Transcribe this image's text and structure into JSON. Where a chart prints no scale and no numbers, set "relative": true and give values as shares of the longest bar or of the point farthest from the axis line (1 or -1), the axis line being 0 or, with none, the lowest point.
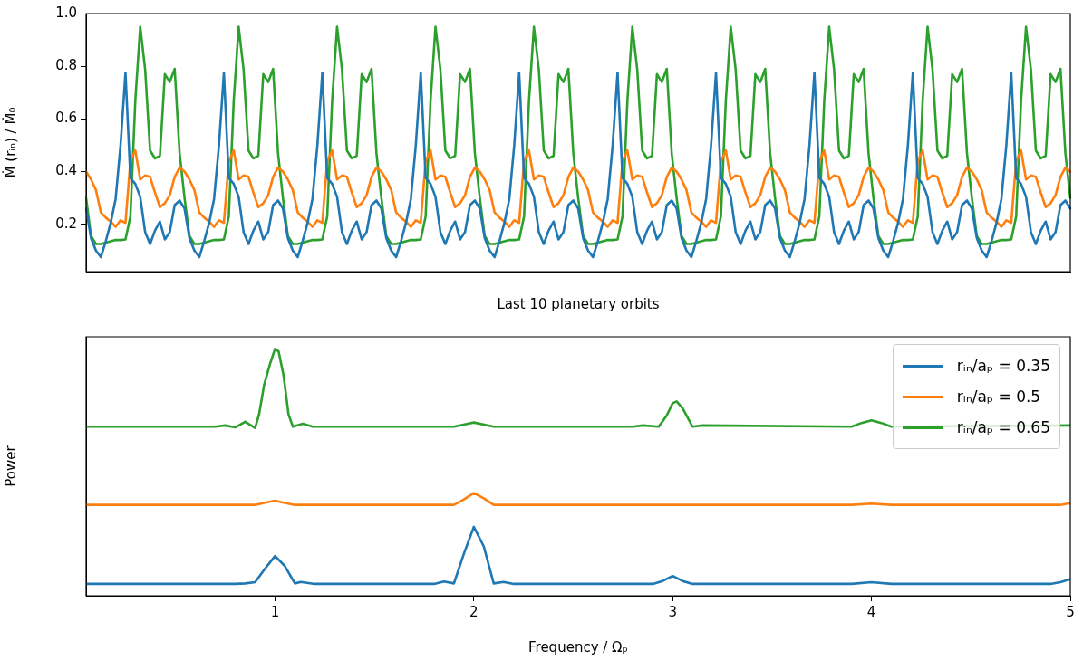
{
  "chart_data": [
    {
      "type": "line",
      "ylabel": "Ṁ (rᵢₙ) / Ṁ₀",
      "xlabel": "Last 10 planetary orbits",
      "tick_labels": "y",
      "ylim": [
        0.02,
        1
      ],
      "yticks": [
        0.2,
        0.4,
        0.6,
        0.8,
        {
          "value": 1,
          "label": "1.0"
        }
      ],
      "categories": [
        null,
        null,
        null,
        null,
        null,
        null,
        null,
        null,
        null,
        null,
        null,
        null,
        null,
        null,
        null,
        null,
        null,
        null,
        null,
        null,
        null,
        null,
        null,
        null,
        null,
        null,
        null,
        null,
        null,
        null,
        null,
        null,
        null,
        null,
        null,
        null,
        null,
        null,
        null,
        null,
        null,
        null,
        null,
        null,
        null,
        null,
        null,
        null,
        null,
        null,
        null,
        null,
        null,
        null,
        null,
        null,
        null,
        null,
        null,
        null,
        null,
        null,
        null,
        null,
        null,
        null,
        null,
        null,
        null,
        null,
        null,
        null,
        null,
        null,
        null,
        null,
        null,
        null,
        null,
        null,
        null,
        null,
        null,
        null,
        null,
        null,
        null,
        null,
        null,
        null,
        null,
        null,
        null,
        null,
        null,
        null,
        null,
        null,
        null,
        null,
        null,
        null,
        null,
        null,
        null,
        null,
        null,
        null,
        null,
        null,
        null,
        null,
        null,
        null,
        null,
        null,
        null,
        null,
        null,
        null,
        null,
        null,
        null,
        null,
        null,
        null,
        null,
        null,
        null,
        null,
        null,
        null,
        null,
        null,
        null,
        null,
        null,
        null,
        null,
        null,
        null,
        null,
        null,
        null,
        null,
        null,
        null,
        null,
        null,
        null,
        null,
        null,
        null,
        null,
        null,
        null,
        null,
        null,
        null,
        null,
        null,
        null,
        null,
        null,
        null,
        null,
        null,
        null,
        null,
        null,
        null,
        null,
        null,
        null,
        null,
        null,
        null,
        null,
        null,
        null,
        null,
        null,
        null,
        null,
        null,
        null,
        null,
        null,
        null,
        null,
        null,
        null,
        null,
        null,
        null,
        null,
        null,
        null,
        null,
        null,
        null
      ],
      "series": [
        {
          "color": "#1f77b4",
          "values": [
            0.26,
            0.147,
            0.1,
            0.075,
            0.136,
            0.205,
            0.296,
            0.5,
            0.775,
            0.376,
            0.353,
            0.304,
            0.17,
            0.125,
            0.176,
            0.21,
            0.142,
            0.17,
            0.273,
            0.29,
            0.26,
            0.147,
            0.1,
            0.075,
            0.136,
            0.205,
            0.296,
            0.5,
            0.775,
            0.376,
            0.353,
            0.304,
            0.17,
            0.125,
            0.176,
            0.21,
            0.142,
            0.17,
            0.273,
            0.29,
            0.26,
            0.147,
            0.1,
            0.075,
            0.136,
            0.205,
            0.296,
            0.5,
            0.775,
            0.376,
            0.353,
            0.304,
            0.17,
            0.125,
            0.176,
            0.21,
            0.142,
            0.17,
            0.273,
            0.29,
            0.26,
            0.147,
            0.1,
            0.075,
            0.136,
            0.205,
            0.296,
            0.5,
            0.775,
            0.376,
            0.353,
            0.304,
            0.17,
            0.125,
            0.176,
            0.21,
            0.142,
            0.17,
            0.273,
            0.29,
            0.26,
            0.147,
            0.1,
            0.075,
            0.136,
            0.205,
            0.296,
            0.5,
            0.775,
            0.376,
            0.353,
            0.304,
            0.17,
            0.125,
            0.176,
            0.21,
            0.142,
            0.17,
            0.273,
            0.29,
            0.26,
            0.147,
            0.1,
            0.075,
            0.136,
            0.205,
            0.296,
            0.5,
            0.775,
            0.376,
            0.353,
            0.304,
            0.17,
            0.125,
            0.176,
            0.21,
            0.142,
            0.17,
            0.273,
            0.29,
            0.26,
            0.147,
            0.1,
            0.075,
            0.136,
            0.205,
            0.296,
            0.5,
            0.775,
            0.376,
            0.353,
            0.304,
            0.17,
            0.125,
            0.176,
            0.21,
            0.142,
            0.17,
            0.273,
            0.29,
            0.26,
            0.147,
            0.1,
            0.075,
            0.136,
            0.205,
            0.296,
            0.5,
            0.775,
            0.376,
            0.353,
            0.304,
            0.17,
            0.125,
            0.176,
            0.21,
            0.142,
            0.17,
            0.273,
            0.29,
            0.26,
            0.147,
            0.1,
            0.075,
            0.136,
            0.205,
            0.296,
            0.5,
            0.775,
            0.376,
            0.353,
            0.304,
            0.17,
            0.125,
            0.176,
            0.21,
            0.142,
            0.17,
            0.273,
            0.29,
            0.26,
            0.147,
            0.1,
            0.075,
            0.136,
            0.205,
            0.296,
            0.5,
            0.775,
            0.376,
            0.353,
            0.304,
            0.17,
            0.125,
            0.176,
            0.21,
            0.142,
            0.17,
            0.273,
            0.29,
            0.26
          ]
        },
        {
          "color": "#ff7f0e",
          "values": [
            0.4,
            0.37,
            0.33,
            0.245,
            0.225,
            0.21,
            0.19,
            0.215,
            0.205,
            0.44,
            0.48,
            0.37,
            0.385,
            0.38,
            0.32,
            0.265,
            0.28,
            0.31,
            0.38,
            0.415,
            0.4,
            0.37,
            0.33,
            0.245,
            0.225,
            0.21,
            0.19,
            0.215,
            0.205,
            0.44,
            0.48,
            0.37,
            0.385,
            0.38,
            0.32,
            0.265,
            0.28,
            0.31,
            0.38,
            0.415,
            0.4,
            0.37,
            0.33,
            0.245,
            0.225,
            0.21,
            0.19,
            0.215,
            0.205,
            0.44,
            0.48,
            0.37,
            0.385,
            0.38,
            0.32,
            0.265,
            0.28,
            0.31,
            0.38,
            0.415,
            0.4,
            0.37,
            0.33,
            0.245,
            0.225,
            0.21,
            0.19,
            0.215,
            0.205,
            0.44,
            0.48,
            0.37,
            0.385,
            0.38,
            0.32,
            0.265,
            0.28,
            0.31,
            0.38,
            0.415,
            0.4,
            0.37,
            0.33,
            0.245,
            0.225,
            0.21,
            0.19,
            0.215,
            0.205,
            0.44,
            0.48,
            0.37,
            0.385,
            0.38,
            0.32,
            0.265,
            0.28,
            0.31,
            0.38,
            0.415,
            0.4,
            0.37,
            0.33,
            0.245,
            0.225,
            0.21,
            0.19,
            0.215,
            0.205,
            0.44,
            0.48,
            0.37,
            0.385,
            0.38,
            0.32,
            0.265,
            0.28,
            0.31,
            0.38,
            0.415,
            0.4,
            0.37,
            0.33,
            0.245,
            0.225,
            0.21,
            0.19,
            0.215,
            0.205,
            0.44,
            0.48,
            0.37,
            0.385,
            0.38,
            0.32,
            0.265,
            0.28,
            0.31,
            0.38,
            0.415,
            0.4,
            0.37,
            0.33,
            0.245,
            0.225,
            0.21,
            0.19,
            0.215,
            0.205,
            0.44,
            0.48,
            0.37,
            0.385,
            0.38,
            0.32,
            0.265,
            0.28,
            0.31,
            0.38,
            0.415,
            0.4,
            0.37,
            0.33,
            0.245,
            0.225,
            0.21,
            0.19,
            0.215,
            0.205,
            0.44,
            0.48,
            0.37,
            0.385,
            0.38,
            0.32,
            0.265,
            0.28,
            0.31,
            0.38,
            0.415,
            0.4,
            0.37,
            0.33,
            0.245,
            0.225,
            0.21,
            0.19,
            0.215,
            0.205,
            0.44,
            0.48,
            0.37,
            0.385,
            0.38,
            0.32,
            0.265,
            0.28,
            0.31,
            0.38,
            0.415,
            0.4
          ]
        },
        {
          "color": "#2ca02c",
          "values": [
            0.3,
            0.155,
            0.125,
            0.125,
            0.13,
            0.135,
            0.14,
            0.14,
            0.142,
            0.23,
            0.67,
            0.95,
            0.787,
            0.48,
            0.45,
            0.46,
            0.77,
            0.74,
            0.79,
            0.47,
            0.3,
            0.155,
            0.125,
            0.125,
            0.13,
            0.135,
            0.14,
            0.14,
            0.142,
            0.23,
            0.67,
            0.95,
            0.787,
            0.48,
            0.45,
            0.46,
            0.77,
            0.74,
            0.79,
            0.47,
            0.3,
            0.155,
            0.125,
            0.125,
            0.13,
            0.135,
            0.14,
            0.14,
            0.142,
            0.23,
            0.67,
            0.95,
            0.787,
            0.48,
            0.45,
            0.46,
            0.77,
            0.74,
            0.79,
            0.47,
            0.3,
            0.155,
            0.125,
            0.125,
            0.13,
            0.135,
            0.14,
            0.14,
            0.142,
            0.23,
            0.67,
            0.95,
            0.787,
            0.48,
            0.45,
            0.46,
            0.77,
            0.74,
            0.79,
            0.47,
            0.3,
            0.155,
            0.125,
            0.125,
            0.13,
            0.135,
            0.14,
            0.14,
            0.142,
            0.23,
            0.67,
            0.95,
            0.787,
            0.48,
            0.45,
            0.46,
            0.77,
            0.74,
            0.79,
            0.47,
            0.3,
            0.155,
            0.125,
            0.125,
            0.13,
            0.135,
            0.14,
            0.14,
            0.142,
            0.23,
            0.67,
            0.95,
            0.787,
            0.48,
            0.45,
            0.46,
            0.77,
            0.74,
            0.79,
            0.47,
            0.3,
            0.155,
            0.125,
            0.125,
            0.13,
            0.135,
            0.14,
            0.14,
            0.142,
            0.23,
            0.67,
            0.95,
            0.787,
            0.48,
            0.45,
            0.46,
            0.77,
            0.74,
            0.79,
            0.47,
            0.3,
            0.155,
            0.125,
            0.125,
            0.13,
            0.135,
            0.14,
            0.14,
            0.142,
            0.23,
            0.67,
            0.95,
            0.787,
            0.48,
            0.45,
            0.46,
            0.77,
            0.74,
            0.79,
            0.47,
            0.3,
            0.155,
            0.125,
            0.125,
            0.13,
            0.135,
            0.14,
            0.14,
            0.142,
            0.23,
            0.67,
            0.95,
            0.787,
            0.48,
            0.45,
            0.46,
            0.77,
            0.74,
            0.79,
            0.47,
            0.3,
            0.155,
            0.125,
            0.125,
            0.13,
            0.135,
            0.14,
            0.14,
            0.142,
            0.23,
            0.67,
            0.95,
            0.787,
            0.48,
            0.45,
            0.46,
            0.77,
            0.74,
            0.79,
            0.47,
            0.3
          ]
        }
      ]
    },
    {
      "type": "line",
      "relative": true,
      "ylabel": "Power",
      "xlabel": "Frequency / Ωₚ",
      "tick_labels": "x",
      "legend": "top right",
      "xlim": [
        0.05,
        5
      ],
      "xticks": [
        1,
        2,
        3,
        4,
        5
      ],
      "series": [
        {
          "name": "rᵢₙ/aₚ = 0.35",
          "color": "#1f77b4",
          "x": [
            0.05,
            0.8,
            0.85,
            0.9,
            0.95,
            1,
            1.05,
            1.1,
            1.13,
            1.2,
            1.8,
            1.85,
            1.9,
            1.95,
            2,
            2.05,
            2.1,
            2.15,
            2.2,
            2.9,
            2.95,
            3,
            3.05,
            3.1,
            3.9,
            4,
            4.1,
            4.9,
            4.95,
            5
          ],
          "values": [
            0.048,
            0.048,
            0.05,
            0.055,
            0.11,
            0.161,
            0.12,
            0.05,
            0.056,
            0.048,
            0.048,
            0.058,
            0.05,
            0.17,
            0.279,
            0.2,
            0.05,
            0.056,
            0.048,
            0.048,
            0.06,
            0.08,
            0.06,
            0.048,
            0.048,
            0.055,
            0.048,
            0.048,
            0.055,
            0.067
          ]
        },
        {
          "name": "rᵢₙ/aₚ = 0.5",
          "color": "#ff7f0e",
          "x": [
            0.05,
            0.9,
            0.95,
            1,
            1.05,
            1.1,
            1.9,
            1.95,
            2,
            2.05,
            2.1,
            3.9,
            4,
            4.1,
            4.95,
            5
          ],
          "values": [
            0.368,
            0.368,
            0.377,
            0.385,
            0.376,
            0.368,
            0.368,
            0.39,
            0.416,
            0.395,
            0.368,
            0.368,
            0.373,
            0.368,
            0.368,
            0.375
          ]
        },
        {
          "name": "rᵢₙ/aₚ = 0.65",
          "color": "#2ca02c",
          "x": [
            0.05,
            0.7,
            0.75,
            0.8,
            0.85,
            0.9,
            0.92,
            0.945,
            0.974,
            1,
            1.018,
            1.043,
            1.068,
            1.09,
            1.14,
            1.19,
            1.9,
            2,
            2.1,
            2.8,
            2.85,
            2.93,
            2.97,
            3,
            3.02,
            3.05,
            3.1,
            3.15,
            3.9,
            3.95,
            4,
            4.05,
            4.1,
            5
          ],
          "values": [
            0.685,
            0.685,
            0.69,
            0.682,
            0.705,
            0.68,
            0.735,
            0.853,
            0.937,
            1,
            0.99,
            0.893,
            0.735,
            0.685,
            0.697,
            0.685,
            0.685,
            0.702,
            0.685,
            0.685,
            0.69,
            0.685,
            0.73,
            0.78,
            0.787,
            0.76,
            0.685,
            0.69,
            0.685,
            0.7,
            0.711,
            0.7,
            0.685,
            0.69
          ]
        }
      ]
    }
  ]
}
